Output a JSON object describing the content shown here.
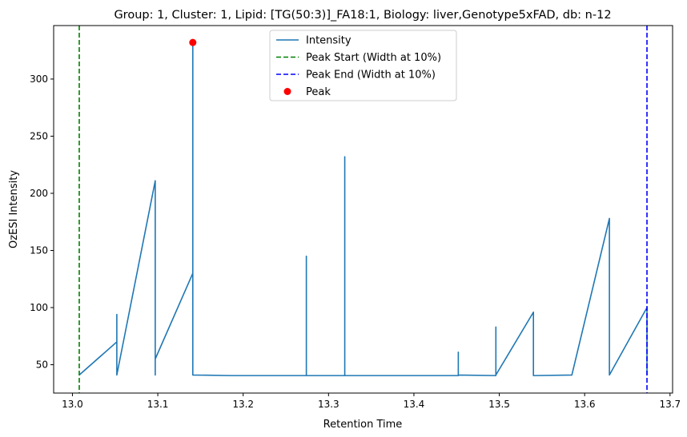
{
  "chart_data": {
    "type": "line",
    "title": "Group: 1, Cluster: 1, Lipid: [TG(50:3)]_FA18:1, Biology: liver,Genotype5xFAD, db: n-12",
    "xlabel": "Retention Time",
    "ylabel": "OzESI Intensity",
    "xlim": [
      12.978,
      13.703
    ],
    "ylim": [
      25.2,
      346.8
    ],
    "xticks": [
      13.0,
      13.1,
      13.2,
      13.3,
      13.4,
      13.5,
      13.6,
      13.7
    ],
    "xtick_labels": [
      "13.0",
      "13.1",
      "13.2",
      "13.3",
      "13.4",
      "13.5",
      "13.6",
      "13.7"
    ],
    "yticks": [
      50,
      100,
      150,
      200,
      250,
      300
    ],
    "ytick_labels": [
      "50",
      "100",
      "150",
      "200",
      "250",
      "300"
    ],
    "grid": false,
    "legend_position": "top-center",
    "series": [
      {
        "name": "Intensity",
        "color": "#1f77b4",
        "style": "solid",
        "x": [
          13.008,
          13.052,
          13.052,
          13.052,
          13.097,
          13.097,
          13.097,
          13.141,
          13.141,
          13.141,
          13.186,
          13.23,
          13.274,
          13.274,
          13.274,
          13.319,
          13.319,
          13.319,
          13.363,
          13.408,
          13.452,
          13.452,
          13.452,
          13.496,
          13.496,
          13.496,
          13.54,
          13.54,
          13.585,
          13.629,
          13.629,
          13.673,
          13.673
        ],
        "y": [
          41,
          70,
          94,
          41,
          211,
          41,
          55,
          130,
          332,
          41,
          40.5,
          40.5,
          40.5,
          145,
          40.5,
          40.5,
          232,
          40.5,
          40.5,
          40.5,
          40.5,
          61,
          41,
          40.5,
          83,
          41,
          96,
          40.5,
          41,
          178,
          41,
          100,
          41
        ]
      },
      {
        "name": "Peak Start (Width at 10%)",
        "color": "#008000",
        "style": "dashed",
        "vline_x": 13.008
      },
      {
        "name": "Peak End (Width at 10%)",
        "color": "#0000ff",
        "style": "dashed",
        "vline_x": 13.673
      },
      {
        "name": "Peak",
        "color": "#ff0000",
        "style": "marker",
        "x": [
          13.141
        ],
        "y": [
          332
        ]
      }
    ]
  }
}
